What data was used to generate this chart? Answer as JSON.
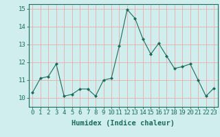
{
  "x": [
    0,
    1,
    2,
    3,
    4,
    5,
    6,
    7,
    8,
    9,
    10,
    11,
    12,
    13,
    14,
    15,
    16,
    17,
    18,
    19,
    20,
    21,
    22,
    23
  ],
  "y": [
    10.3,
    11.1,
    11.2,
    11.9,
    10.1,
    10.2,
    10.5,
    10.5,
    10.1,
    11.0,
    11.1,
    12.9,
    14.95,
    14.45,
    13.3,
    12.45,
    13.05,
    12.35,
    11.65,
    11.75,
    11.9,
    11.0,
    10.1,
    10.55
  ],
  "line_color": "#1a6b5a",
  "marker": "D",
  "marker_size": 2,
  "bg_color": "#d0eeee",
  "grid_color": "#e8aaaa",
  "xlabel": "Humidex (Indice chaleur)",
  "ylim": [
    9.5,
    15.25
  ],
  "xlim": [
    -0.5,
    23.5
  ],
  "yticks": [
    10,
    11,
    12,
    13,
    14,
    15
  ],
  "xticks": [
    0,
    1,
    2,
    3,
    4,
    5,
    6,
    7,
    8,
    9,
    10,
    11,
    12,
    13,
    14,
    15,
    16,
    17,
    18,
    19,
    20,
    21,
    22,
    23
  ],
  "xlabel_fontsize": 7.5,
  "tick_fontsize": 6.5,
  "spine_color": "#1a6b5a",
  "linewidth": 0.8
}
